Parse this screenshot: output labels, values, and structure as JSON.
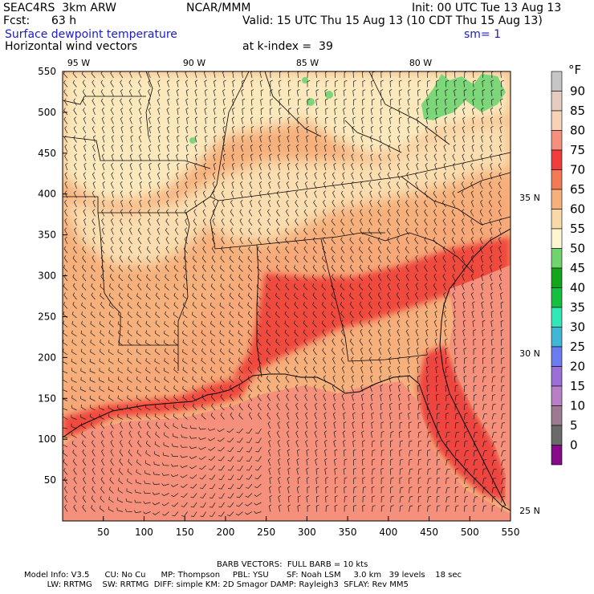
{
  "header": {
    "model": "SEAC4RS  3km ARW",
    "org": "NCAR/MMM",
    "init": "Init: 00 UTC Tue 13 Aug 13",
    "fcst_label": "Fcst:",
    "fcst_value": "63 h",
    "valid": "Valid: 15 UTC Thu 15 Aug 13 (10 CDT Thu 15 Aug 13)",
    "field": "Surface dewpoint temperature",
    "smoothing": "sm= 1",
    "overlay": "Horizontal wind vectors",
    "k_index": "at k-index =  39"
  },
  "axes": {
    "lon_labels": [
      "95 W",
      "90 W",
      "85 W",
      "80 W"
    ],
    "lat_labels": [
      "35 N",
      "30 N",
      "25 N"
    ],
    "x_ticks": [
      "50",
      "100",
      "150",
      "200",
      "250",
      "300",
      "350",
      "400",
      "450",
      "500",
      "550"
    ],
    "y_ticks": [
      "550",
      "500",
      "450",
      "400",
      "350",
      "300",
      "250",
      "200",
      "150",
      "100",
      "50"
    ]
  },
  "colorbar": {
    "unit": "°F",
    "levels": [
      {
        "label": "90",
        "color": "#c6c6c6"
      },
      {
        "label": "85",
        "color": "#e6cbbf"
      },
      {
        "label": "80",
        "color": "#f8d2b4"
      },
      {
        "label": "75",
        "color": "#f4907c"
      },
      {
        "label": "70",
        "color": "#f03c3c"
      },
      {
        "label": "65",
        "color": "#f47a56"
      },
      {
        "label": "60",
        "color": "#f6b07c"
      },
      {
        "label": "55",
        "color": "#f9d9a6"
      },
      {
        "label": "50",
        "color": "#fdf7cf"
      },
      {
        "label": "45",
        "color": "#6fd46e"
      },
      {
        "label": "40",
        "color": "#12a61a"
      },
      {
        "label": "35",
        "color": "#13c040"
      },
      {
        "label": "30",
        "color": "#30e8b8"
      },
      {
        "label": "25",
        "color": "#3fb6d6"
      },
      {
        "label": "20",
        "color": "#6a7cf0"
      },
      {
        "label": "15",
        "color": "#9a6fd8"
      },
      {
        "label": "10",
        "color": "#b97fc6"
      },
      {
        "label": "5",
        "color": "#9e7a92"
      },
      {
        "label": "0",
        "color": "#6a6a6a"
      }
    ],
    "bottom_color": "#860a8a"
  },
  "footer": {
    "barb_note": "BARB VECTORS:  FULL BARB = 10 kts",
    "line1": "Model Info: V3.5      CU: No Cu      MP: Thompson     PBL: YSU       SF: Noah LSM     3.0 km   39 levels    18 sec",
    "line2": "         LW: RRTMG    SW: RRTMG  DIFF: simple KM: 2D Smagor DAMP: Rayleigh3  SFLAY: Rev MM5"
  }
}
